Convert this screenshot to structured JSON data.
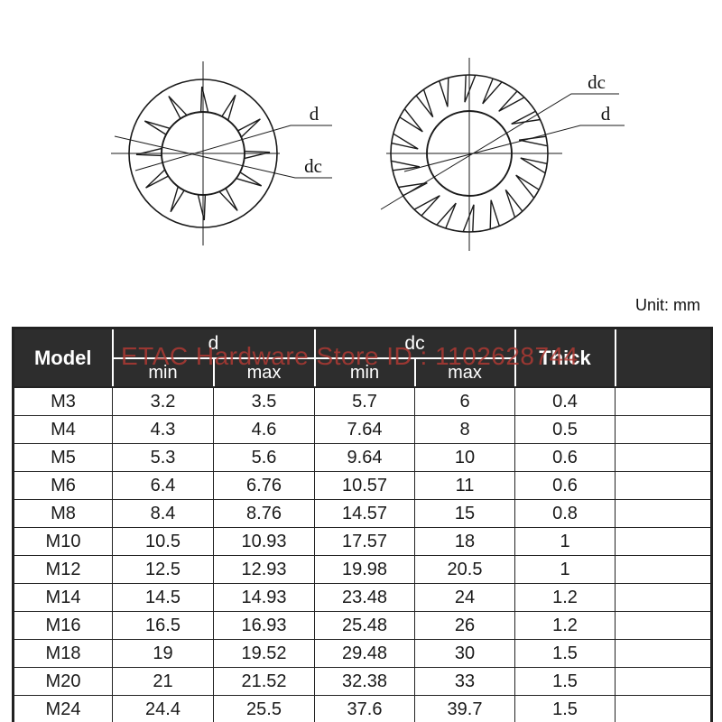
{
  "unit_label": "Unit: mm",
  "watermark": "ETAC Hardware Store ID : 1102628744",
  "diagrams": {
    "left": {
      "label_d": "d",
      "label_dc": "dc"
    },
    "right": {
      "label_d": "d",
      "label_dc": "dc"
    }
  },
  "table": {
    "header": {
      "model": "Model",
      "d": "d",
      "dc": "dc",
      "thick": "Thick",
      "min": "min",
      "max": "max",
      "empty": ""
    },
    "columns": [
      "model",
      "d_min",
      "d_max",
      "dc_min",
      "dc_max",
      "thick",
      "empty"
    ],
    "rows": [
      [
        "M3",
        "3.2",
        "3.5",
        "5.7",
        "6",
        "0.4",
        ""
      ],
      [
        "M4",
        "4.3",
        "4.6",
        "7.64",
        "8",
        "0.5",
        ""
      ],
      [
        "M5",
        "5.3",
        "5.6",
        "9.64",
        "10",
        "0.6",
        ""
      ],
      [
        "M6",
        "6.4",
        "6.76",
        "10.57",
        "11",
        "0.6",
        ""
      ],
      [
        "M8",
        "8.4",
        "8.76",
        "14.57",
        "15",
        "0.8",
        ""
      ],
      [
        "M10",
        "10.5",
        "10.93",
        "17.57",
        "18",
        "1",
        ""
      ],
      [
        "M12",
        "12.5",
        "12.93",
        "19.98",
        "20.5",
        "1",
        ""
      ],
      [
        "M14",
        "14.5",
        "14.93",
        "23.48",
        "24",
        "1.2",
        ""
      ],
      [
        "M16",
        "16.5",
        "16.93",
        "25.48",
        "26",
        "1.2",
        ""
      ],
      [
        "M18",
        "19",
        "19.52",
        "29.48",
        "30",
        "1.5",
        ""
      ],
      [
        "M20",
        "21",
        "21.52",
        "32.38",
        "33",
        "1.5",
        ""
      ],
      [
        "M24",
        "24.4",
        "25.5",
        "37.6",
        "39.7",
        "1.5",
        ""
      ]
    ]
  },
  "colors": {
    "header_bg": "#2d2d2d",
    "header_text": "#ffffff",
    "watermark_red": "#b23a34",
    "line": "#1a1a1a"
  }
}
